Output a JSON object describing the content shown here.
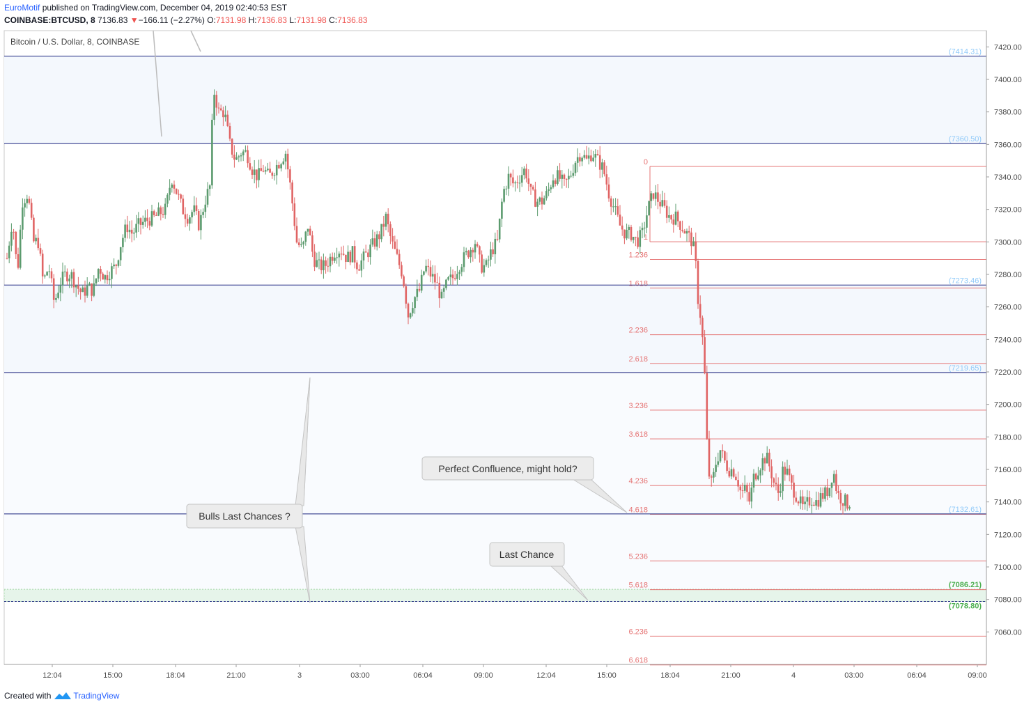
{
  "header": {
    "author": "EuroMotif",
    "published_text": " published on TradingView.com, December 04, 2019 02:40:53 EST",
    "symbol": "COINBASE:BTCUSD, 8",
    "last": "7136.83",
    "change_arrow": "▼",
    "change": "−166.11 (−2.27%)",
    "o_label": "O:",
    "o": "7131.98",
    "h_label": "H:",
    "h": "7136.83",
    "l_label": "L:",
    "l": "7131.98",
    "c_label": "C:",
    "c": "7136.83"
  },
  "footer": {
    "created_with": "Created with",
    "brand": "TradingView"
  },
  "colors": {
    "up": "#5b9b6e",
    "down": "#e06464",
    "hline": "#1a237e",
    "fib": "#e57373",
    "label_blue": "#90caf9",
    "label_green": "#4caf50"
  },
  "chart_data": {
    "type": "candlestick",
    "title": "Bitcoin / U.S. Dollar, 8, COINBASE",
    "ylim": [
      7040,
      7430
    ],
    "y_ticks": [
      7060,
      7080,
      7100,
      7120,
      7140,
      7160,
      7180,
      7200,
      7220,
      7240,
      7260,
      7280,
      7300,
      7320,
      7340,
      7360,
      7380,
      7400,
      7420
    ],
    "x_ticks": [
      "12:04",
      "15:00",
      "18:04",
      "21:00",
      "3",
      "03:00",
      "06:04",
      "09:00",
      "12:04",
      "15:00",
      "18:04",
      "21:00",
      "4",
      "03:00",
      "06:04",
      "09:00"
    ],
    "levels": [
      {
        "value": 7414.31,
        "label": "(7414.31)"
      },
      {
        "value": 7360.5,
        "label": "(7360.50)"
      },
      {
        "value": 7273.46,
        "label": "(7273.46)"
      },
      {
        "value": 7219.65,
        "label": "(7219.65)"
      },
      {
        "value": 7132.61,
        "label": "(7132.61)"
      },
      {
        "value": 7086.21,
        "label": "(7086.21)"
      },
      {
        "value": 7078.8,
        "label": "(7078.80)"
      }
    ],
    "fib_levels": [
      {
        "label": "0",
        "value": 7346.5
      },
      {
        "label": "1",
        "value": 7300.1
      },
      {
        "label": "1.236",
        "value": 7289.2
      },
      {
        "label": "1.618",
        "value": 7271.6
      },
      {
        "label": "2.236",
        "value": 7242.9
      },
      {
        "label": "2.618",
        "value": 7225.2
      },
      {
        "label": "3.236",
        "value": 7196.5
      },
      {
        "label": "3.618",
        "value": 7178.8
      },
      {
        "label": "4.236",
        "value": 7150.1
      },
      {
        "label": "4.618",
        "value": 7132.4
      },
      {
        "label": "5.236",
        "value": 7103.7
      },
      {
        "label": "5.618",
        "value": 7086.0
      },
      {
        "label": "6.236",
        "value": 7057.4
      },
      {
        "label": "6.618",
        "value": 7039.7
      }
    ],
    "callouts": [
      {
        "text": "Bulls Last Chances ?"
      },
      {
        "text": "Perfect Confluence, might hold?"
      },
      {
        "text": "Last Chance"
      }
    ],
    "price_path": [
      [
        0,
        7290
      ],
      [
        8,
        7315
      ],
      [
        15,
        7280
      ],
      [
        22,
        7325
      ],
      [
        30,
        7330
      ],
      [
        38,
        7300
      ],
      [
        45,
        7300
      ],
      [
        52,
        7275
      ],
      [
        60,
        7285
      ],
      [
        68,
        7262
      ],
      [
        76,
        7275
      ],
      [
        84,
        7280
      ],
      [
        92,
        7280
      ],
      [
        100,
        7273
      ],
      [
        108,
        7268
      ],
      [
        116,
        7272
      ],
      [
        124,
        7270
      ],
      [
        132,
        7285
      ],
      [
        140,
        7278
      ],
      [
        148,
        7282
      ],
      [
        156,
        7285
      ],
      [
        164,
        7300
      ],
      [
        172,
        7310
      ],
      [
        180,
        7305
      ],
      [
        188,
        7310
      ],
      [
        196,
        7312
      ],
      [
        204,
        7314
      ],
      [
        212,
        7315
      ],
      [
        220,
        7318
      ],
      [
        228,
        7320
      ],
      [
        236,
        7340
      ],
      [
        244,
        7330
      ],
      [
        252,
        7320
      ],
      [
        260,
        7315
      ],
      [
        268,
        7320
      ],
      [
        276,
        7310
      ],
      [
        284,
        7325
      ],
      [
        292,
        7335
      ],
      [
        296,
        7395
      ],
      [
        304,
        7380
      ],
      [
        312,
        7380
      ],
      [
        320,
        7360
      ],
      [
        328,
        7350
      ],
      [
        336,
        7355
      ],
      [
        344,
        7355
      ],
      [
        352,
        7345
      ],
      [
        360,
        7340
      ],
      [
        368,
        7345
      ],
      [
        376,
        7340
      ],
      [
        384,
        7345
      ],
      [
        392,
        7350
      ],
      [
        400,
        7355
      ],
      [
        408,
        7330
      ],
      [
        416,
        7300
      ],
      [
        424,
        7295
      ],
      [
        432,
        7310
      ],
      [
        440,
        7290
      ],
      [
        448,
        7285
      ],
      [
        456,
        7285
      ],
      [
        464,
        7290
      ],
      [
        472,
        7295
      ],
      [
        480,
        7295
      ],
      [
        488,
        7290
      ],
      [
        496,
        7293
      ],
      [
        504,
        7285
      ],
      [
        512,
        7290
      ],
      [
        520,
        7295
      ],
      [
        528,
        7300
      ],
      [
        536,
        7305
      ],
      [
        544,
        7315
      ],
      [
        552,
        7300
      ],
      [
        560,
        7290
      ],
      [
        568,
        7280
      ],
      [
        576,
        7255
      ],
      [
        584,
        7265
      ],
      [
        592,
        7270
      ],
      [
        600,
        7285
      ],
      [
        608,
        7280
      ],
      [
        616,
        7275
      ],
      [
        624,
        7265
      ],
      [
        632,
        7275
      ],
      [
        640,
        7278
      ],
      [
        648,
        7285
      ],
      [
        656,
        7290
      ],
      [
        664,
        7295
      ],
      [
        672,
        7300
      ],
      [
        680,
        7285
      ],
      [
        688,
        7285
      ],
      [
        696,
        7295
      ],
      [
        704,
        7300
      ],
      [
        712,
        7330
      ],
      [
        720,
        7340
      ],
      [
        728,
        7335
      ],
      [
        736,
        7340
      ],
      [
        744,
        7345
      ],
      [
        752,
        7330
      ],
      [
        760,
        7325
      ],
      [
        768,
        7325
      ],
      [
        776,
        7330
      ],
      [
        784,
        7340
      ],
      [
        792,
        7340
      ],
      [
        800,
        7335
      ],
      [
        808,
        7340
      ],
      [
        816,
        7350
      ],
      [
        824,
        7355
      ],
      [
        832,
        7350
      ],
      [
        840,
        7355
      ],
      [
        848,
        7350
      ],
      [
        856,
        7345
      ],
      [
        864,
        7330
      ],
      [
        872,
        7320
      ],
      [
        880,
        7310
      ],
      [
        888,
        7305
      ],
      [
        896,
        7305
      ],
      [
        904,
        7300
      ],
      [
        912,
        7305
      ],
      [
        920,
        7320
      ],
      [
        928,
        7330
      ],
      [
        936,
        7325
      ],
      [
        944,
        7320
      ],
      [
        952,
        7315
      ],
      [
        960,
        7315
      ],
      [
        968,
        7310
      ],
      [
        976,
        7305
      ],
      [
        984,
        7300
      ],
      [
        988,
        7290
      ],
      [
        992,
        7265
      ],
      [
        997,
        7250
      ],
      [
        1002,
        7215
      ],
      [
        1006,
        7160
      ],
      [
        1012,
        7150
      ],
      [
        1018,
        7165
      ],
      [
        1024,
        7172
      ],
      [
        1030,
        7165
      ],
      [
        1036,
        7160
      ],
      [
        1042,
        7160
      ],
      [
        1048,
        7155
      ],
      [
        1054,
        7145
      ],
      [
        1060,
        7148
      ],
      [
        1066,
        7140
      ],
      [
        1072,
        7155
      ],
      [
        1078,
        7160
      ],
      [
        1084,
        7165
      ],
      [
        1090,
        7168
      ],
      [
        1096,
        7160
      ],
      [
        1102,
        7150
      ],
      [
        1108,
        7145
      ],
      [
        1114,
        7160
      ],
      [
        1120,
        7158
      ],
      [
        1126,
        7150
      ],
      [
        1132,
        7145
      ],
      [
        1138,
        7140
      ],
      [
        1144,
        7135
      ],
      [
        1150,
        7140
      ],
      [
        1156,
        7142
      ],
      [
        1162,
        7140
      ],
      [
        1168,
        7143
      ],
      [
        1174,
        7145
      ],
      [
        1180,
        7148
      ],
      [
        1186,
        7160
      ],
      [
        1192,
        7145
      ],
      [
        1198,
        7142
      ],
      [
        1204,
        7140
      ],
      [
        1210,
        7136.83
      ]
    ]
  }
}
